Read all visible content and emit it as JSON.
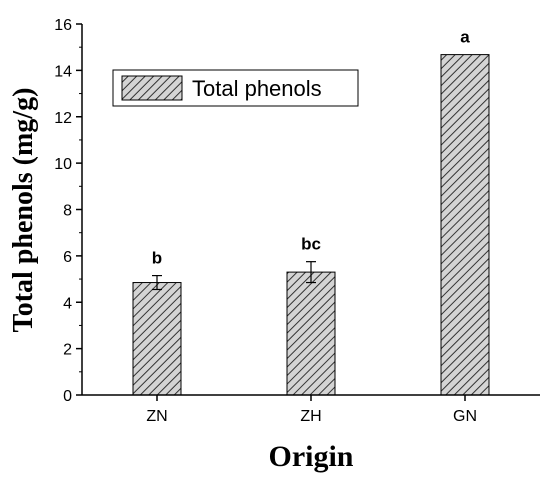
{
  "chart_data": {
    "type": "bar",
    "categories": [
      "ZN",
      "ZH",
      "GN"
    ],
    "series": [
      {
        "name": "Total phenols",
        "values": [
          4.85,
          5.3,
          14.68
        ],
        "errors": [
          0.3,
          0.45,
          null
        ],
        "significance": [
          "b",
          "bc",
          "a"
        ]
      }
    ],
    "xlabel": "Origin",
    "ylabel": "Total phenols (mg/g)",
    "ylim": [
      0,
      16
    ],
    "yticks": [
      0,
      2,
      4,
      6,
      8,
      10,
      12,
      14,
      16
    ],
    "legend_position": "top-left",
    "grid": false,
    "bar_fill": "diagonal hatch",
    "colors": {
      "bar_fill": "#cfcfcf",
      "hatch": "#333333",
      "axis": "#000000"
    }
  }
}
